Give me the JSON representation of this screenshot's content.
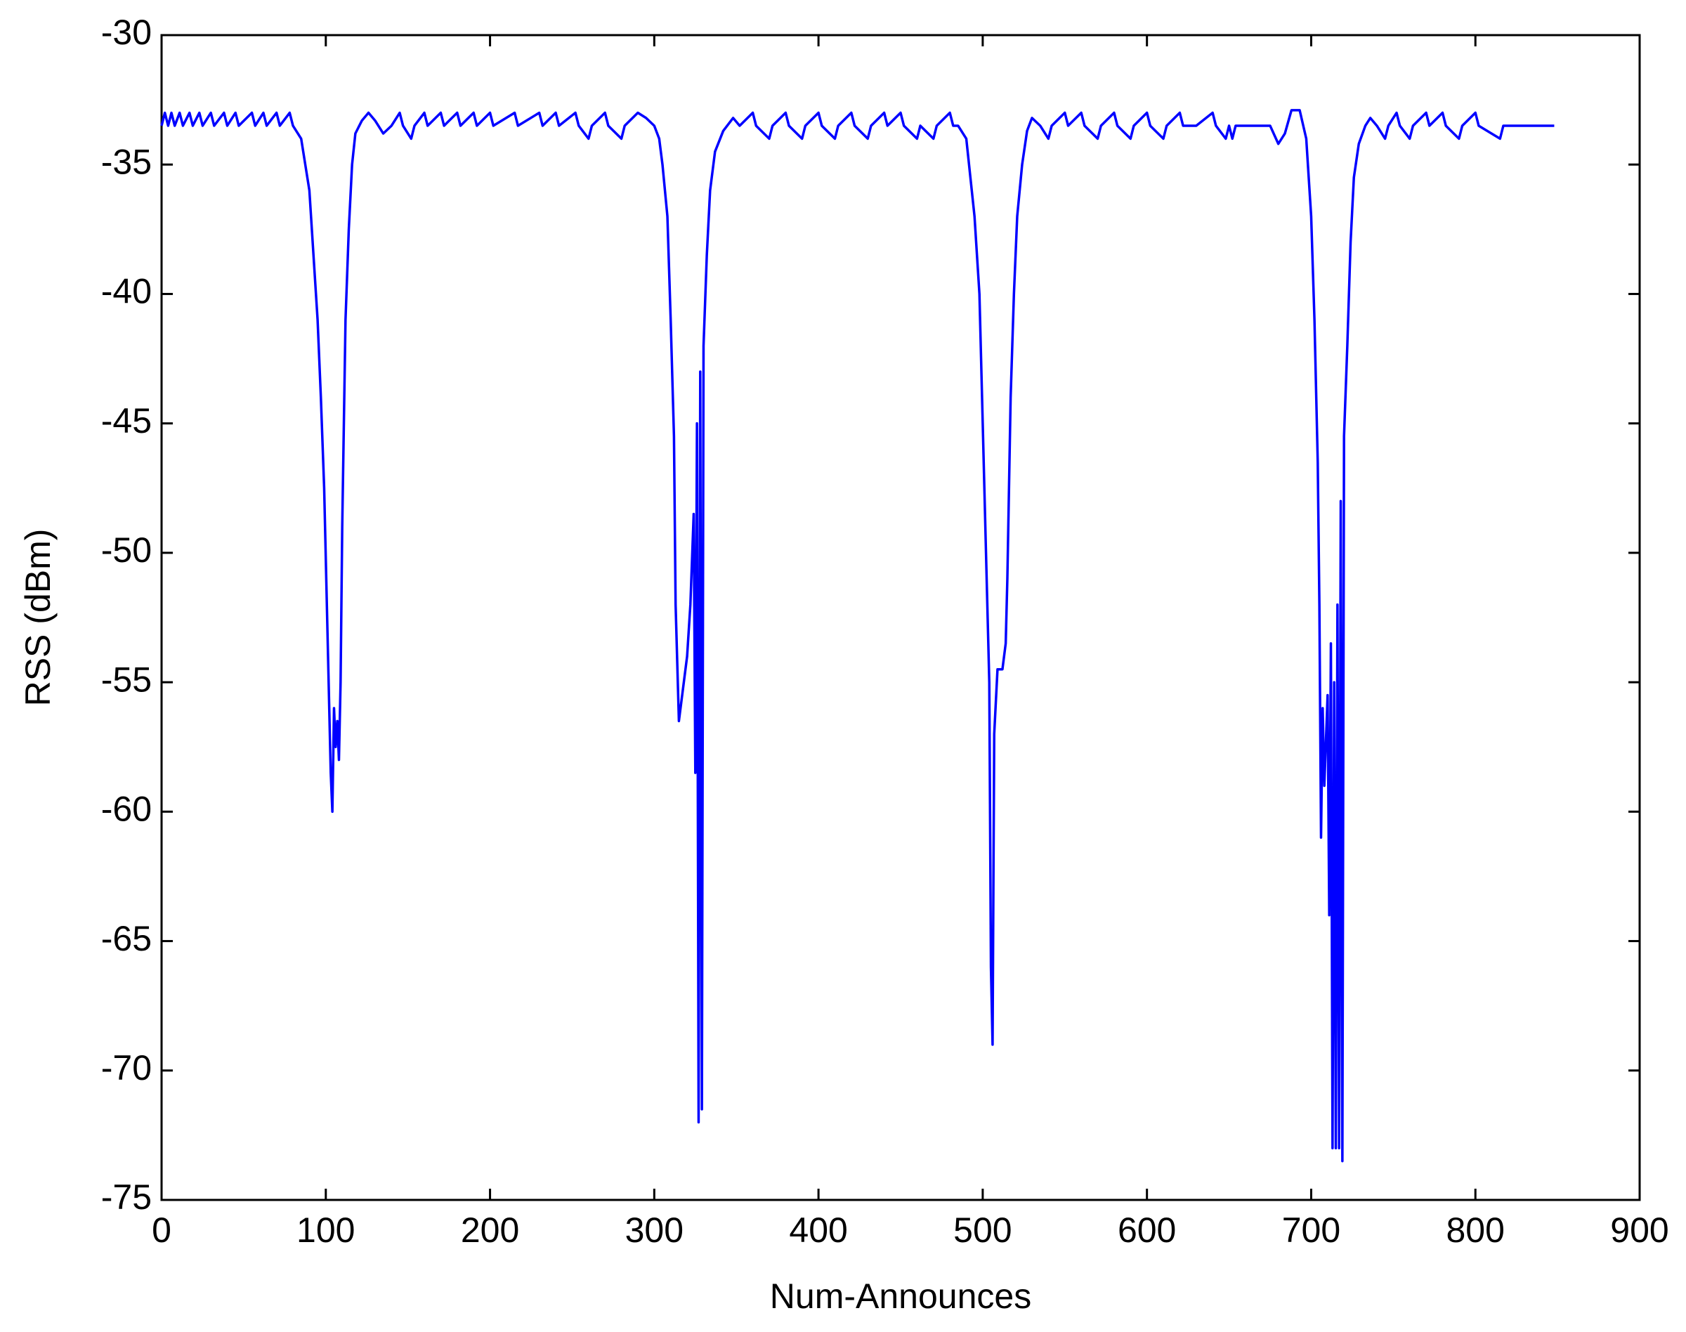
{
  "chart_data": {
    "type": "line",
    "x_label": "Num-Announces",
    "y_label": "RSS (dBm)",
    "color": "#0000ff",
    "xlim": [
      0,
      900
    ],
    "xticks": [
      0,
      100,
      200,
      300,
      400,
      500,
      600,
      700,
      800,
      900
    ],
    "ylim": [
      -75,
      -30
    ],
    "yticks": [
      -75,
      -70,
      -65,
      -60,
      -55,
      -50,
      -45,
      -40,
      -35,
      -30
    ],
    "x": [
      0,
      2,
      4,
      6,
      8,
      11,
      13,
      17,
      19,
      23,
      25,
      30,
      32,
      38,
      40,
      45,
      47,
      55,
      57,
      62,
      64,
      70,
      72,
      78,
      80,
      85,
      90,
      93,
      95,
      97,
      99,
      101,
      103,
      104,
      105,
      106,
      107,
      108,
      109,
      110,
      112,
      114,
      116,
      118,
      122,
      126,
      130,
      135,
      140,
      145,
      147,
      152,
      154,
      160,
      162,
      170,
      172,
      180,
      182,
      190,
      192,
      200,
      202,
      215,
      217,
      230,
      232,
      240,
      242,
      252,
      254,
      260,
      262,
      270,
      272,
      280,
      282,
      290,
      295,
      300,
      303,
      305,
      308,
      310,
      312,
      313,
      315,
      318,
      320,
      322,
      324,
      325,
      326,
      327,
      328,
      329,
      330,
      332,
      334,
      337,
      342,
      348,
      352,
      360,
      362,
      370,
      372,
      380,
      382,
      390,
      392,
      400,
      402,
      410,
      412,
      420,
      422,
      430,
      432,
      440,
      442,
      450,
      452,
      460,
      462,
      470,
      472,
      480,
      482,
      485,
      490,
      495,
      498,
      500,
      502,
      504,
      505,
      506,
      507,
      509,
      512,
      514,
      515,
      517,
      519,
      521,
      524,
      527,
      530,
      535,
      540,
      542,
      550,
      552,
      560,
      562,
      570,
      572,
      580,
      582,
      590,
      592,
      600,
      602,
      610,
      612,
      620,
      622,
      630,
      640,
      642,
      648,
      650,
      652,
      654,
      665,
      675,
      680,
      684,
      688,
      693,
      697,
      700,
      702,
      704,
      705,
      706,
      707,
      708,
      710,
      711,
      712,
      713,
      714,
      715,
      716,
      717,
      718,
      719,
      720,
      722,
      724,
      726,
      729,
      733,
      736,
      740,
      745,
      747,
      752,
      754,
      760,
      762,
      770,
      772,
      780,
      782,
      790,
      792,
      800,
      802,
      815,
      817,
      830,
      848
    ],
    "values": [
      -33.5,
      -33,
      -33.5,
      -33,
      -33.5,
      -33,
      -33.5,
      -33,
      -33.5,
      -33,
      -33.5,
      -33,
      -33.5,
      -33,
      -33.5,
      -33,
      -33.5,
      -33,
      -33.5,
      -33,
      -33.5,
      -33,
      -33.5,
      -33,
      -33.5,
      -34,
      -36,
      -39,
      -41,
      -44,
      -47.5,
      -53,
      -58.5,
      -60,
      -56,
      -57.5,
      -56.5,
      -58,
      -55,
      -49,
      -41,
      -37.5,
      -35,
      -33.8,
      -33.3,
      -33,
      -33.3,
      -33.8,
      -33.5,
      -33,
      -33.5,
      -34,
      -33.5,
      -33,
      -33.5,
      -33,
      -33.5,
      -33,
      -33.5,
      -33,
      -33.5,
      -33,
      -33.5,
      -33,
      -33.5,
      -33,
      -33.5,
      -33,
      -33.5,
      -33,
      -33.5,
      -34,
      -33.5,
      -33,
      -33.5,
      -34,
      -33.5,
      -33,
      -33.2,
      -33.5,
      -34,
      -35,
      -37,
      -41,
      -45.5,
      -52,
      -56.5,
      -55,
      -54,
      -52,
      -48.5,
      -58.5,
      -45,
      -72,
      -43,
      -71.5,
      -42,
      -38.5,
      -36,
      -34.5,
      -33.7,
      -33.2,
      -33.5,
      -33,
      -33.5,
      -34,
      -33.5,
      -33,
      -33.5,
      -34,
      -33.5,
      -33,
      -33.5,
      -34,
      -33.5,
      -33,
      -33.5,
      -34,
      -33.5,
      -33,
      -33.5,
      -33,
      -33.5,
      -34,
      -33.5,
      -34,
      -33.5,
      -33,
      -33.5,
      -33.5,
      -34,
      -37,
      -40,
      -45,
      -50,
      -55,
      -66,
      -69,
      -57,
      -54.5,
      -54.5,
      -53.5,
      -51,
      -44,
      -40,
      -37,
      -35,
      -33.7,
      -33.2,
      -33.5,
      -34,
      -33.5,
      -33,
      -33.5,
      -33,
      -33.5,
      -34,
      -33.5,
      -33,
      -33.5,
      -34,
      -33.5,
      -33,
      -33.5,
      -34,
      -33.5,
      -33,
      -33.5,
      -33.5,
      -33,
      -33.5,
      -34,
      -33.5,
      -34,
      -33.5,
      -33.5,
      -33.5,
      -34.2,
      -33.8,
      -32.9,
      -32.9,
      -34,
      -37,
      -41,
      -46.5,
      -52,
      -61,
      -56,
      -59,
      -55.5,
      -64,
      -53.5,
      -73,
      -55,
      -73,
      -52,
      -73,
      -48,
      -73.5,
      -45.5,
      -42,
      -38,
      -35.5,
      -34.2,
      -33.5,
      -33.2,
      -33.5,
      -34,
      -33.5,
      -33,
      -33.5,
      -34,
      -33.5,
      -33,
      -33.5,
      -33,
      -33.5,
      -34,
      -33.5,
      -33,
      -33.5,
      -34,
      -33.5,
      -33.5,
      -33.5
    ]
  }
}
